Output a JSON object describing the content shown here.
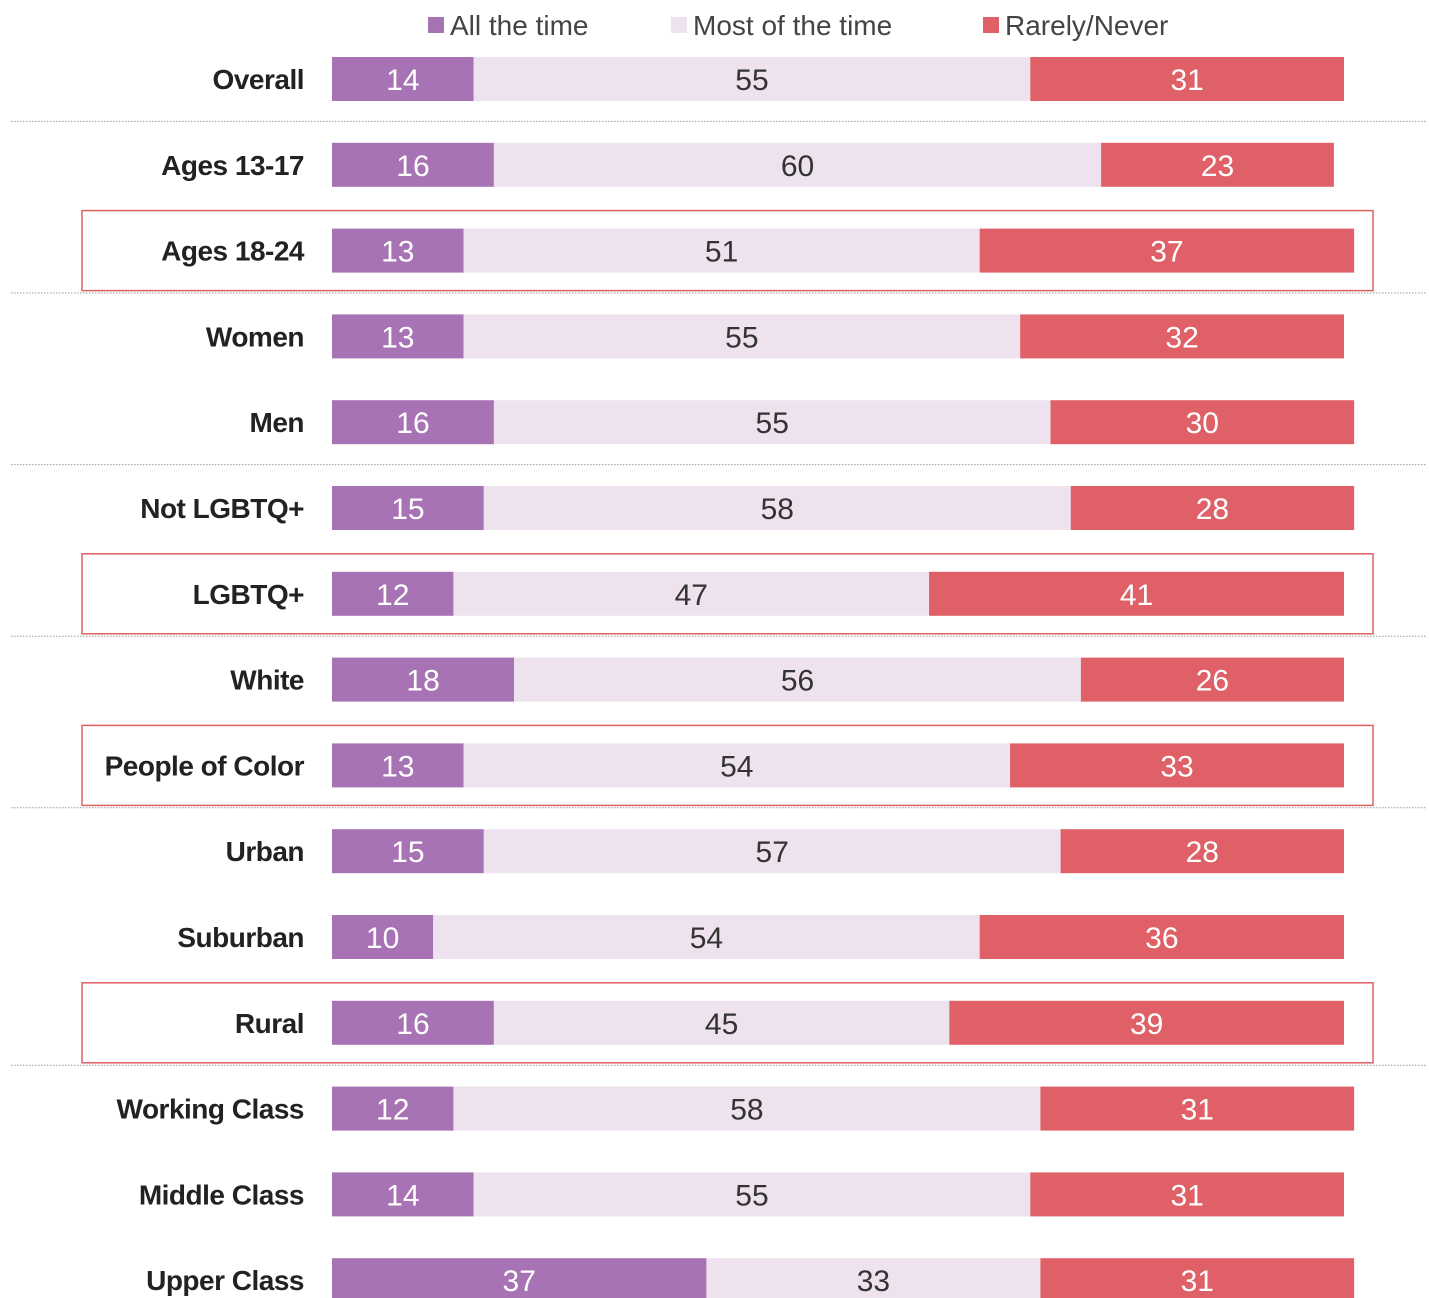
{
  "chart_data": {
    "type": "bar",
    "orientation": "horizontal",
    "stacked": true,
    "unit": "percent",
    "legend_position": "top",
    "grid": false,
    "title": "",
    "xlabel": "",
    "ylabel": "",
    "xlim": [
      0,
      100
    ],
    "categories": [
      "Overall",
      "Ages 13-17",
      "Ages 18-24",
      "Women",
      "Men",
      "Not LGBTQ+",
      "LGBTQ+",
      "White",
      "People of Color",
      "Urban",
      "Suburban",
      "Rural",
      "Working Class",
      "Middle Class",
      "Upper Class"
    ],
    "series": [
      {
        "name": "All the time",
        "color": "#a873b4",
        "label_color": "#ffffff",
        "values": [
          14,
          16,
          13,
          13,
          16,
          15,
          12,
          18,
          13,
          15,
          10,
          16,
          12,
          14,
          37
        ]
      },
      {
        "name": "Most of the time",
        "color": "#ede2ee",
        "label_color": "#333333",
        "values": [
          55,
          60,
          51,
          55,
          55,
          58,
          47,
          56,
          54,
          57,
          54,
          45,
          58,
          55,
          33
        ]
      },
      {
        "name": "Rarely/Never",
        "color": "#df6066",
        "label_color": "#ffffff",
        "values": [
          31,
          23,
          37,
          32,
          30,
          28,
          41,
          26,
          33,
          28,
          36,
          39,
          31,
          31,
          31
        ]
      }
    ],
    "highlighted_categories": [
      "Ages 18-24",
      "LGBTQ+",
      "People of Color",
      "Rural"
    ],
    "highlight_color": "#df6066",
    "group_separators_after": [
      "Overall",
      "Ages 18-24",
      "Men",
      "LGBTQ+",
      "People of Color",
      "Rural"
    ]
  }
}
